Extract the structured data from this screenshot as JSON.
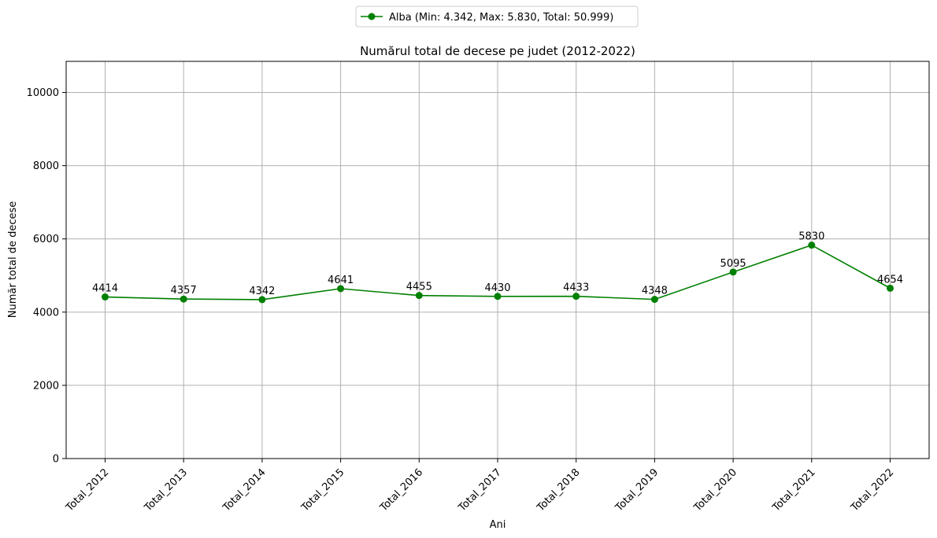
{
  "chart_data": {
    "type": "line",
    "title": "Numărul total de decese pe judet (2012-2022)",
    "xlabel": "Ani",
    "ylabel": "Număr total de decese",
    "categories": [
      "Total_2012",
      "Total_2013",
      "Total_2014",
      "Total_2015",
      "Total_2016",
      "Total_2017",
      "Total_2018",
      "Total_2019",
      "Total_2020",
      "Total_2021",
      "Total_2022"
    ],
    "series": [
      {
        "name": "Alba (Min: 4.342, Max: 5.830, Total: 50.999)",
        "values": [
          4414,
          4357,
          4342,
          4641,
          4455,
          4430,
          4433,
          4348,
          5095,
          5830,
          4654
        ],
        "color": "#008000",
        "marker": "circle"
      }
    ],
    "ylim": [
      0,
      10850
    ],
    "yticks": [
      0,
      2000,
      4000,
      6000,
      8000,
      10000
    ],
    "grid": true,
    "legend_placement": "top-center",
    "axis_color": "#000000",
    "grid_color": "#b0b0b0"
  }
}
